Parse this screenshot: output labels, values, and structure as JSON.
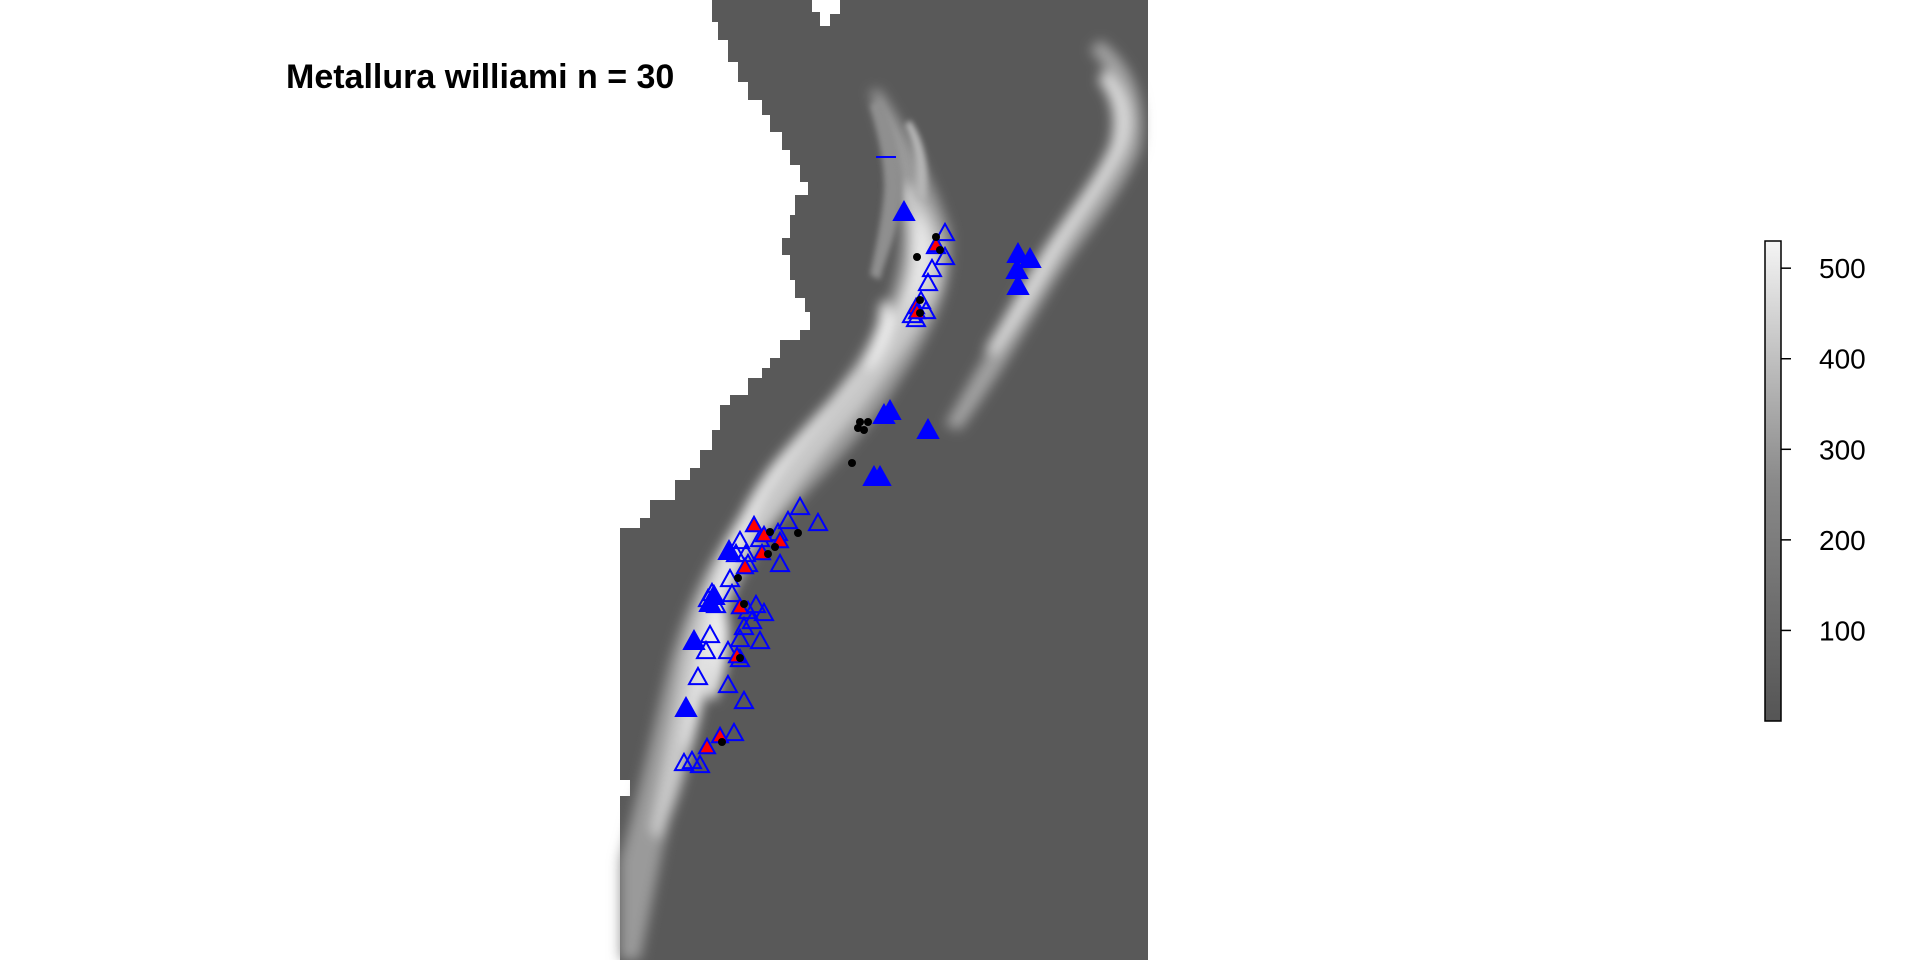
{
  "map": {
    "title": "Metallura williami",
    "sample_size_text": "n = 30",
    "colors": {
      "ocean": "#595959",
      "outside": "#ffffff",
      "presence_fill": "#0000ff",
      "record_outline": "#0000ff",
      "highlight_fill": "#ff0000",
      "point": "#000000"
    },
    "markers": [
      {
        "type": "filled",
        "label": "filled blue triangle"
      },
      {
        "type": "open",
        "label": "open blue triangle"
      },
      {
        "type": "highlight",
        "label": "red triangle"
      },
      {
        "type": "dot",
        "label": "black dot"
      }
    ]
  },
  "legend": {
    "range": [
      0,
      530
    ],
    "ticks": [
      "100",
      "200",
      "300",
      "400",
      "500"
    ],
    "tick_values": [
      100,
      200,
      300,
      400,
      500
    ],
    "color_low": "#595959",
    "color_high": "#ffffff"
  }
}
